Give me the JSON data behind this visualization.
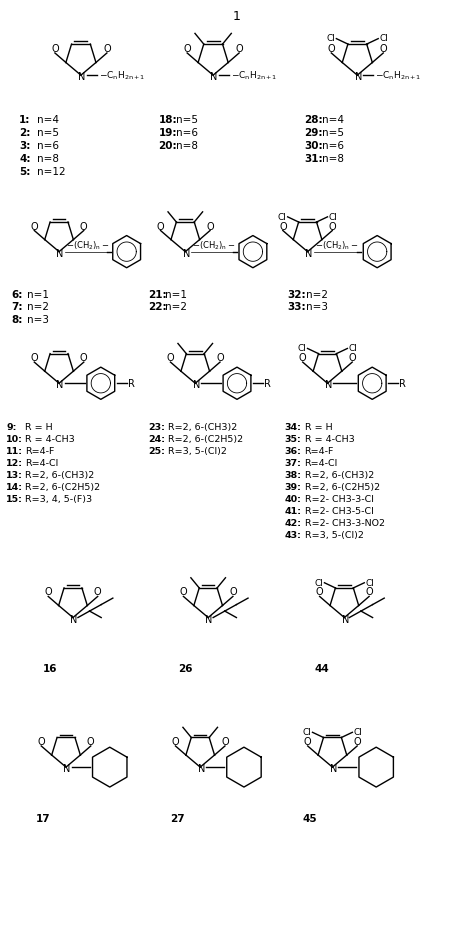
{
  "title": "1",
  "bg": "#ffffff",
  "row1_labels_col1": [
    "1:  n=4",
    "2:  n=5",
    "3: n=6",
    "4:   n=8",
    "5:   n=12"
  ],
  "row1_labels_col2": [
    "18:  n=5",
    "19:  n=6",
    "20:  n=8"
  ],
  "row1_labels_col3": [
    "28:  n=4",
    "29:  n=5",
    "30: n=6",
    "31:  n=8"
  ],
  "row2_labels_col1": [
    "6: n=1",
    "7: n=2",
    "8: n=3"
  ],
  "row2_labels_col2": [
    "21: n=1",
    "22: n=2"
  ],
  "row2_labels_col3": [
    "32: n=2",
    "33: n=3"
  ],
  "row3_labels_col1": [
    "9: R = H",
    "10: R = 4-CH3",
    "11: R=4-F",
    "12: R=4-Cl",
    "13: R=2, 6-(CH3)2",
    "14: R=2, 6-(C2H5)2",
    "15: R=3, 4, 5-(F)3"
  ],
  "row3_labels_col2": [
    "23: R=2, 6-(CH3)2",
    "24: R=2, 6-(C2H5)2",
    "25: R=3, 5-(Cl)2"
  ],
  "row3_labels_col3": [
    "34: R = H",
    "35: R = 4-CH3",
    "36: R=4-F",
    "37: R=4-Cl",
    "38: R=2, 6-(CH3)2",
    "39: R=2, 6-(C2H5)2",
    "40: R=2- CH3-3-Cl",
    "41: R=2- CH3-5-Cl",
    "42: R=2- CH3-3-NO2",
    "43: R=3, 5-(Cl)2"
  ],
  "row4_labels": [
    "16",
    "26",
    "44"
  ],
  "row5_labels": [
    "17",
    "27",
    "45"
  ]
}
